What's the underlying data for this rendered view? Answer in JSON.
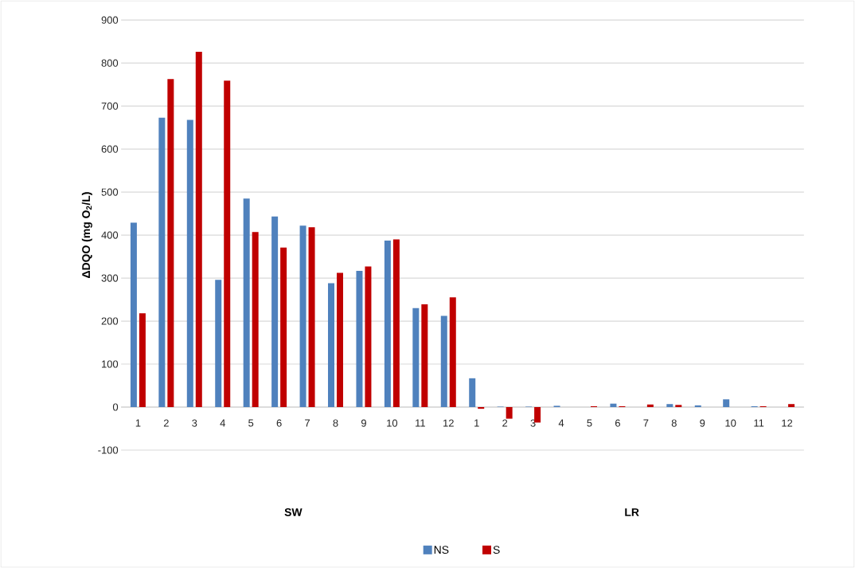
{
  "chart_data": {
    "type": "bar",
    "ylabel": "ΔDQO (mg O$_{2}$/L)",
    "categories": [
      "1",
      "2",
      "3",
      "4",
      "5",
      "6",
      "7",
      "8",
      "9",
      "10",
      "11",
      "12",
      "1",
      "2",
      "3",
      "4",
      "5",
      "6",
      "7",
      "8",
      "9",
      "10",
      "11",
      "12"
    ],
    "series": [
      {
        "name": "NS",
        "color": "#4f81bd",
        "values": [
          429,
          673,
          668,
          296,
          485,
          443,
          422,
          288,
          317,
          387,
          230,
          212,
          67,
          1,
          1,
          3,
          0,
          8,
          0,
          7,
          4,
          18,
          2,
          0
        ]
      },
      {
        "name": "S",
        "color": "#c00000",
        "values": [
          218,
          763,
          826,
          759,
          407,
          371,
          418,
          312,
          327,
          390,
          239,
          255,
          -4,
          -27,
          -36,
          0,
          2,
          2,
          6,
          5,
          0,
          0,
          2,
          7
        ]
      }
    ],
    "ylim": [
      -100,
      900
    ],
    "yticks": [
      -100,
      0,
      100,
      200,
      300,
      400,
      500,
      600,
      700,
      800,
      900
    ],
    "grid": "y",
    "legend": "bottom",
    "annotations": [
      "SW",
      "LR"
    ]
  }
}
